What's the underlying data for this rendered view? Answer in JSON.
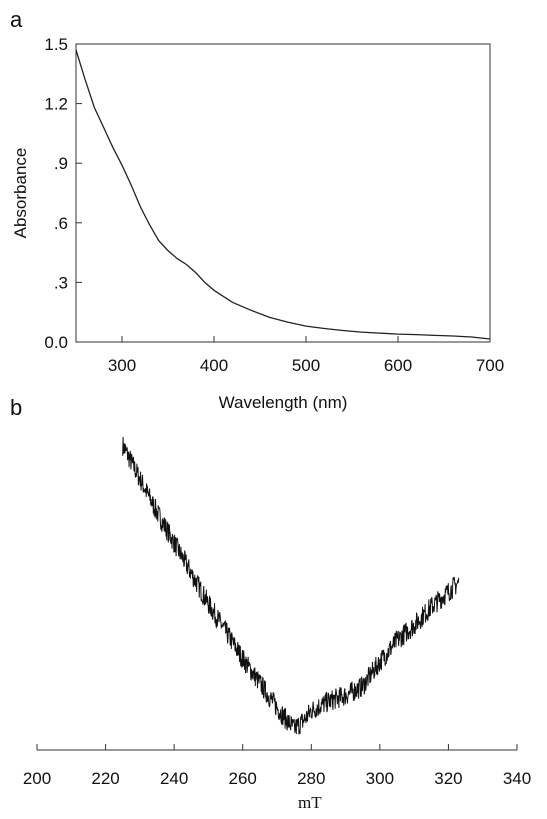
{
  "chart_data": [
    {
      "panel": "a",
      "type": "line",
      "xlabel": "Wavelength (nm)",
      "ylabel": "Absorbance",
      "xlim": [
        250,
        700
      ],
      "ylim": [
        0,
        1.5
      ],
      "x_ticks": [
        "300",
        "400",
        "500",
        "600",
        "700"
      ],
      "y_ticks": [
        "0.0",
        ".3",
        ".6",
        ".9",
        "1.2",
        "1.5"
      ],
      "grid": false,
      "series": [
        {
          "x": [
            250,
            260,
            270,
            280,
            290,
            300,
            310,
            320,
            330,
            340,
            350,
            360,
            370,
            380,
            390,
            400,
            420,
            440,
            460,
            480,
            500,
            520,
            540,
            560,
            580,
            600,
            620,
            640,
            660,
            680,
            700
          ],
          "y": [
            1.47,
            1.32,
            1.18,
            1.08,
            0.98,
            0.89,
            0.79,
            0.68,
            0.59,
            0.51,
            0.46,
            0.42,
            0.39,
            0.35,
            0.3,
            0.26,
            0.2,
            0.16,
            0.125,
            0.1,
            0.08,
            0.068,
            0.058,
            0.05,
            0.045,
            0.04,
            0.037,
            0.033,
            0.03,
            0.025,
            0.015
          ]
        }
      ]
    },
    {
      "panel": "b",
      "type": "line",
      "xlabel": "mT",
      "ylabel": "",
      "xlim": [
        200,
        340
      ],
      "x_ticks": [
        "200",
        "220",
        "240",
        "260",
        "280",
        "300",
        "320",
        "340"
      ],
      "grid": false,
      "y_axis_shown": false,
      "series": [
        {
          "x": [
            225,
            230,
            235,
            240,
            245,
            250,
            255,
            260,
            265,
            270,
            272,
            275,
            278,
            280,
            285,
            290,
            295,
            300,
            305,
            310,
            315,
            320,
            323
          ],
          "y": [
            0.95,
            0.84,
            0.73,
            0.63,
            0.53,
            0.43,
            0.34,
            0.25,
            0.17,
            0.09,
            0.06,
            0.02,
            0.05,
            0.08,
            0.11,
            0.13,
            0.16,
            0.24,
            0.31,
            0.36,
            0.42,
            0.47,
            0.5
          ]
        }
      ]
    }
  ],
  "panels": {
    "a": {
      "letter": "a"
    },
    "b": {
      "letter": "b"
    }
  }
}
